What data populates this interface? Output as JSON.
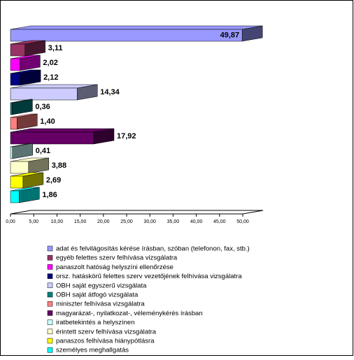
{
  "chart_data": {
    "type": "bar3d",
    "categories": [
      "adat és felvilágosítás kérése írásban, szóban (telefonon, fax, stb.)",
      "egyéb felettes szerv felhívása vizsgálatra",
      "panaszolt hatóság helyszíni ellenőrzése",
      "orsz. hatáskörű felettes szerv vezetőjének felhívása vizsgálatra",
      "OBH saját egyszerű vizsgálata",
      "OBH saját átfogó vizsgálata",
      "miniszter felhívása vizsgálatra",
      "magyarázat-, nyilatkozat-, véleménykérés írásban",
      "iratbetekintés a helyszínen",
      "érintett szerv felhívása vizsgálatra",
      "panaszos felhívása hiánypótlásra",
      "személyes meghallgatás"
    ],
    "values": [
      49.87,
      3.11,
      2.02,
      2.12,
      14.34,
      0.36,
      1.4,
      17.92,
      0.41,
      3.88,
      2.69,
      1.86
    ],
    "value_labels": [
      "49,87",
      "3,11",
      "2,02",
      "2,12",
      "14,34",
      "0,36",
      "1,40",
      "17,92",
      "0,41",
      "3,88",
      "2,69",
      "1,86"
    ],
    "colors": [
      "#9999ff",
      "#993366",
      "#ff00ff",
      "#000080",
      "#ccccff",
      "#008080",
      "#ff8080",
      "#660066",
      "#ccffff",
      "#ffffcc",
      "#ffff00",
      "#00ffff"
    ],
    "xlim": [
      0,
      50
    ],
    "xticks": [
      {
        "value": 0,
        "label": "0,00"
      },
      {
        "value": 5,
        "label": "5,00"
      },
      {
        "value": 10,
        "label": "10,00"
      },
      {
        "value": 15,
        "label": "15,00"
      },
      {
        "value": 20,
        "label": "20,00"
      },
      {
        "value": 25,
        "label": "25,00"
      },
      {
        "value": 30,
        "label": "30,00"
      },
      {
        "value": 35,
        "label": "35,00"
      },
      {
        "value": 40,
        "label": "40,00"
      },
      {
        "value": 45,
        "label": "45,00"
      },
      {
        "value": 50,
        "label": "50,00"
      }
    ]
  }
}
